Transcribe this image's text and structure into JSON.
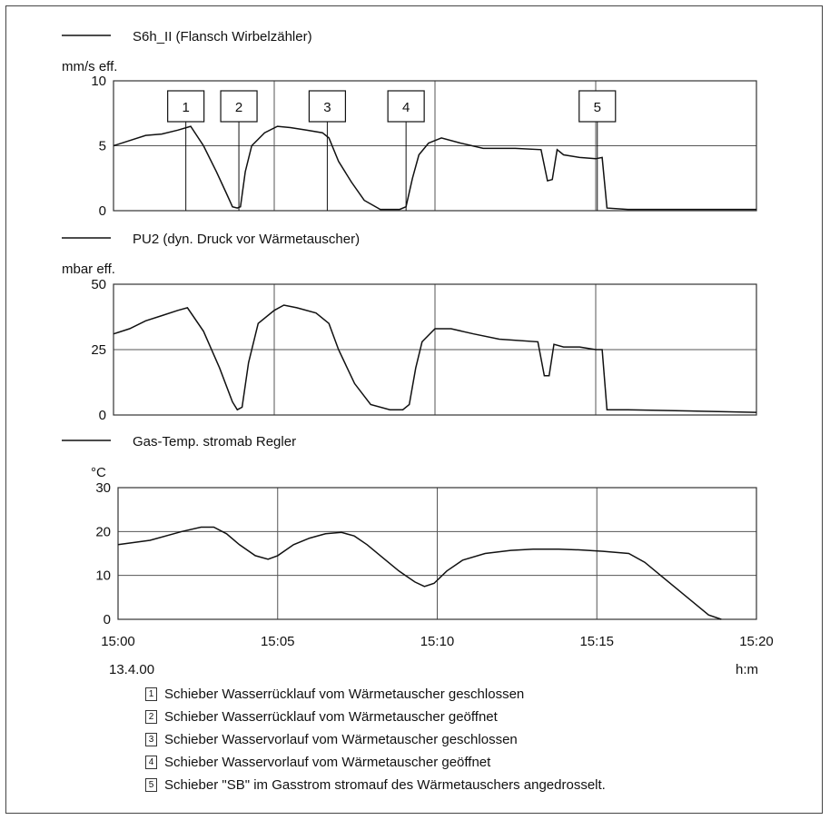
{
  "chart_data": [
    {
      "type": "line",
      "title": "S6h_II (Flansch Wirbelzähler)",
      "ylabel": "mm/s eff.",
      "ylim": [
        0,
        10
      ],
      "yticks": [
        "0",
        "5",
        "10"
      ],
      "xlim": [
        0,
        20
      ],
      "markers": [
        {
          "label": "1",
          "x": 2.25
        },
        {
          "label": "2",
          "x": 3.9
        },
        {
          "label": "3",
          "x": 6.65
        },
        {
          "label": "4",
          "x": 9.1
        },
        {
          "label": "5",
          "x": 15.05
        }
      ],
      "series": [
        {
          "name": "S6h_II (Flansch Wirbelzähler)",
          "x": [
            0,
            0.5,
            1.0,
            1.5,
            2.0,
            2.4,
            2.8,
            3.2,
            3.5,
            3.7,
            3.85,
            3.95,
            4.1,
            4.3,
            4.7,
            5.1,
            5.5,
            6.0,
            6.5,
            6.7,
            7.0,
            7.4,
            7.8,
            8.3,
            8.9,
            9.1,
            9.3,
            9.5,
            9.8,
            10.2,
            10.8,
            11.5,
            12.5,
            13.3,
            13.5,
            13.65,
            13.8,
            14.0,
            14.5,
            15.0,
            15.2,
            15.35,
            16.0,
            20.0
          ],
          "values": [
            5.0,
            5.4,
            5.8,
            5.9,
            6.2,
            6.5,
            5.0,
            3.0,
            1.4,
            0.3,
            0.2,
            0.3,
            3.0,
            5.0,
            6.0,
            6.5,
            6.4,
            6.2,
            6.0,
            5.6,
            3.8,
            2.2,
            0.8,
            0.1,
            0.1,
            0.3,
            2.5,
            4.3,
            5.2,
            5.6,
            5.2,
            4.8,
            4.8,
            4.7,
            2.3,
            2.4,
            4.7,
            4.3,
            4.1,
            4.0,
            4.1,
            0.2,
            0.1,
            0.1
          ]
        }
      ]
    },
    {
      "type": "line",
      "title": "PU2 (dyn. Druck vor Wärmetauscher)",
      "ylabel": "mbar eff.",
      "ylim": [
        0,
        50
      ],
      "yticks": [
        "0",
        "25",
        "50"
      ],
      "xlim": [
        0,
        20
      ],
      "series": [
        {
          "name": "PU2 (dyn. Druck vor Wärmetauscher)",
          "x": [
            0,
            0.5,
            1.0,
            1.5,
            2.0,
            2.3,
            2.8,
            3.3,
            3.7,
            3.85,
            4.0,
            4.2,
            4.5,
            5.0,
            5.3,
            5.7,
            6.3,
            6.7,
            7.0,
            7.5,
            8.0,
            8.6,
            9.0,
            9.2,
            9.4,
            9.6,
            10.0,
            10.5,
            11.2,
            12.0,
            13.2,
            13.4,
            13.55,
            13.7,
            14.0,
            14.5,
            15.0,
            15.2,
            15.35,
            16.0,
            20.0
          ],
          "values": [
            31,
            33,
            36,
            38,
            40,
            41,
            32,
            18,
            5,
            2,
            3,
            20,
            35,
            40,
            42,
            41,
            39,
            35,
            25,
            12,
            4,
            2,
            2,
            4,
            18,
            28,
            33,
            33,
            31,
            29,
            28,
            15,
            15,
            27,
            26,
            26,
            25,
            25,
            2,
            2,
            1
          ]
        }
      ]
    },
    {
      "type": "line",
      "title": "Gas-Temp. stromab Regler",
      "ylabel": "°C",
      "ylim": [
        0,
        30
      ],
      "yticks": [
        "0",
        "10",
        "20",
        "30"
      ],
      "xlim": [
        0,
        20
      ],
      "xticks": [
        "15:00",
        "15:05",
        "15:10",
        "15:15",
        "15:20"
      ],
      "date": "13.4.00",
      "xlabel": "h:m",
      "series": [
        {
          "name": "Gas-Temp. stromab Regler",
          "x": [
            0,
            1.0,
            2.0,
            2.6,
            3.0,
            3.4,
            3.8,
            4.3,
            4.7,
            5.0,
            5.5,
            6.0,
            6.5,
            7.0,
            7.4,
            7.8,
            8.3,
            8.8,
            9.3,
            9.6,
            9.9,
            10.3,
            10.8,
            11.5,
            12.3,
            13.0,
            13.8,
            14.5,
            15.2,
            16.0,
            16.5,
            17.0,
            17.5,
            18.0,
            18.5,
            18.9
          ],
          "values": [
            17,
            18,
            20,
            21,
            21,
            19.5,
            17,
            14.5,
            13.7,
            14.5,
            17,
            18.5,
            19.5,
            19.8,
            19,
            17,
            14,
            11,
            8.5,
            7.5,
            8.2,
            11,
            13.5,
            15,
            15.7,
            16,
            16,
            15.8,
            15.5,
            15,
            13,
            10,
            7,
            4,
            1,
            0
          ]
        }
      ]
    }
  ],
  "annotations": [
    {
      "num": "1",
      "text": "Schieber Wasserrücklauf vom Wärmetauscher geschlossen"
    },
    {
      "num": "2",
      "text": "Schieber Wasserrücklauf vom Wärmetauscher geöffnet"
    },
    {
      "num": "3",
      "text": "Schieber Wasservorlauf vom Wärmetauscher geschlossen"
    },
    {
      "num": "4",
      "text": "Schieber Wasservorlauf vom Wärmetauscher geöffnet"
    },
    {
      "num": "5",
      "text": "Schieber \"SB\" im Gasstrom stromauf des Wärmetauschers angedrosselt."
    }
  ],
  "colors": {
    "line": "#111111",
    "grid": "#555555",
    "frame": "#333333"
  }
}
